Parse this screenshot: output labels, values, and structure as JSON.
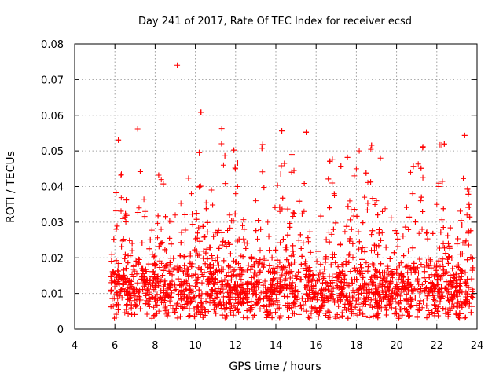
{
  "chart_data": {
    "type": "scatter",
    "title": "Day 241 of 2017, Rate Of TEC Index for receiver ecsd",
    "xlabel": "GPS time / hours",
    "ylabel": "ROTI / TECUs",
    "xlim": [
      4,
      24
    ],
    "ylim": [
      0,
      0.08
    ],
    "xticks": [
      "4",
      "6",
      "8",
      "10",
      "12",
      "14",
      "16",
      "18",
      "20",
      "22",
      "24"
    ],
    "yticks": [
      "0",
      "0.01",
      "0.02",
      "0.03",
      "0.04",
      "0.05",
      "0.06",
      "0.07",
      "0.08"
    ],
    "marker": "+",
    "color": "#ff0000",
    "grid": true,
    "data_range_hours": [
      5.8,
      23.8
    ],
    "series": [
      {
        "name": "ROTI",
        "x": [
          9.1,
          6.3,
          11.3,
          11.4,
          14.8,
          14.9,
          19.2,
          10.8,
          12.1,
          9.8,
          16.8,
          18.0,
          20.7,
          22.1,
          23.6,
          13.0,
          12.0,
          17.9,
          14.2,
          8.3,
          7.2,
          6.4,
          20.8,
          21.2,
          10.2,
          11.7,
          15.4,
          16.9,
          18.4,
          19.0,
          23.5,
          9.0,
          7.5,
          13.6,
          22.0
        ],
        "y": [
          0.074,
          0.0432,
          0.052,
          0.046,
          0.049,
          0.0445,
          0.048,
          0.039,
          0.04,
          0.038,
          0.041,
          0.045,
          0.044,
          0.04,
          0.035,
          0.036,
          0.038,
          0.043,
          0.033,
          0.028,
          0.034,
          0.031,
          0.038,
          0.036,
          0.04,
          0.032,
          0.033,
          0.038,
          0.037,
          0.036,
          0.032,
          0.032,
          0.033,
          0.03,
          0.035
        ]
      }
    ]
  }
}
